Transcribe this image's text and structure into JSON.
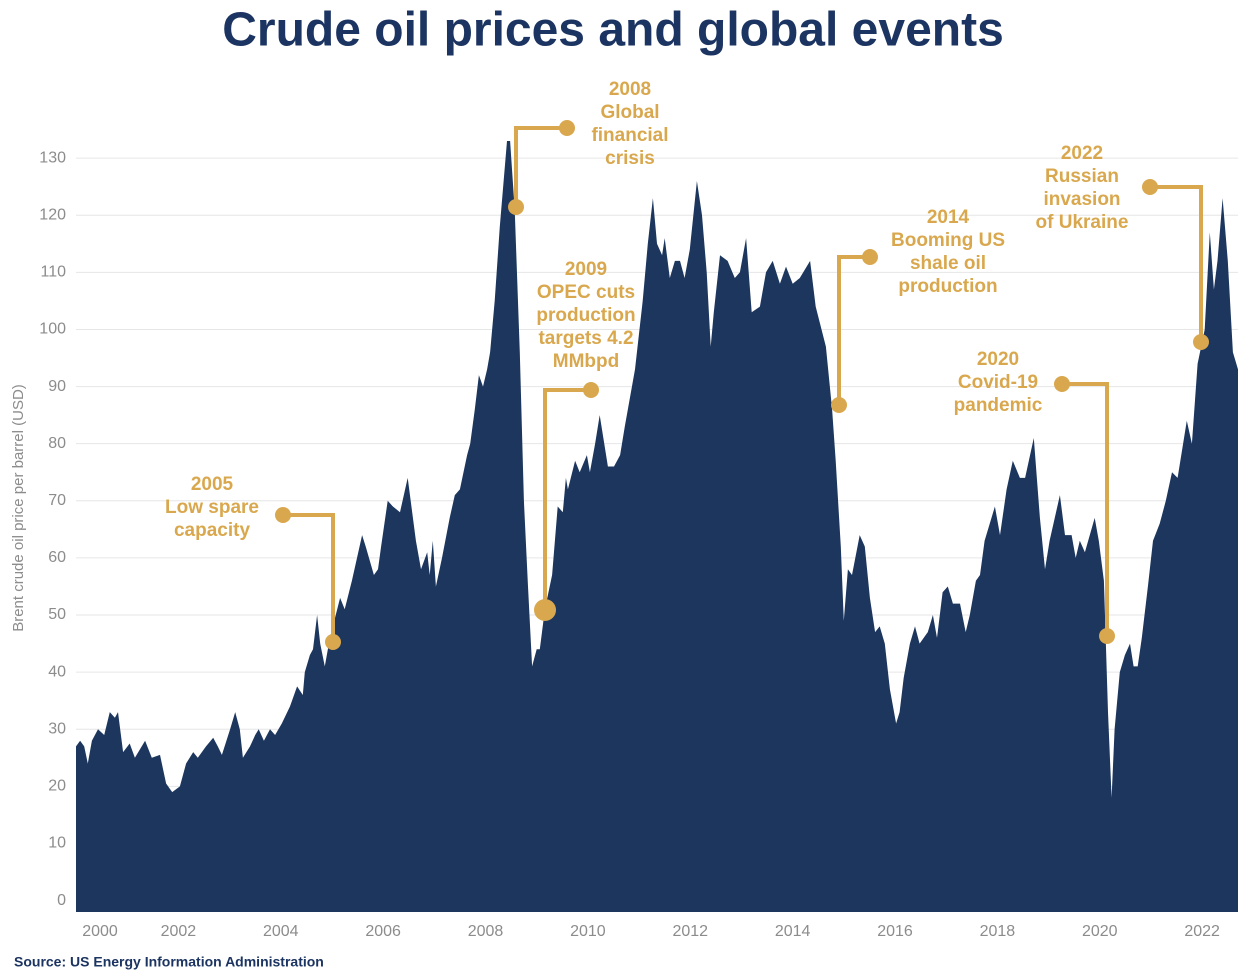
{
  "chart_data": {
    "type": "area",
    "title": "Crude oil prices and global events",
    "y_label": "Brent crude oil price per barrel (USD)",
    "source": "Source: US Energy Information Administration",
    "color": "#1c365e",
    "annotation_color": "#d9a84e",
    "grid": true,
    "xlim": [
      2000,
      2022.7
    ],
    "xticks": [
      2000,
      2002,
      2004,
      2006,
      2008,
      2010,
      2012,
      2014,
      2016,
      2018,
      2020,
      2022
    ],
    "ylim": [
      -2,
      140
    ],
    "yticks": [
      0,
      10,
      20,
      30,
      40,
      50,
      60,
      70,
      80,
      90,
      100,
      110,
      120,
      130
    ],
    "x": [
      2000.0,
      2000.08,
      2000.16,
      2000.23,
      2000.31,
      2000.43,
      2000.55,
      2000.66,
      2000.76,
      2000.82,
      2000.92,
      2001.05,
      2001.15,
      2001.35,
      2001.48,
      2001.64,
      2001.76,
      2001.88,
      2002.03,
      2002.15,
      2002.29,
      2002.38,
      2002.54,
      2002.68,
      2002.77,
      2002.85,
      2003.01,
      2003.11,
      2003.2,
      2003.26,
      2003.4,
      2003.5,
      2003.57,
      2003.67,
      2003.79,
      2003.89,
      2004.02,
      2004.18,
      2004.32,
      2004.43,
      2004.47,
      2004.57,
      2004.63,
      2004.71,
      2004.77,
      2004.86,
      2004.96,
      2005.16,
      2005.25,
      2005.39,
      2005.59,
      2005.66,
      2005.82,
      2005.9,
      2005.96,
      2006.09,
      2006.19,
      2006.33,
      2006.48,
      2006.64,
      2006.74,
      2006.86,
      2006.91,
      2006.97,
      2007.03,
      2007.15,
      2007.3,
      2007.4,
      2007.5,
      2007.64,
      2007.7,
      2007.79,
      2007.87,
      2007.95,
      2008.03,
      2008.09,
      2008.18,
      2008.28,
      2008.42,
      2008.48,
      2008.57,
      2008.67,
      2008.75,
      2008.83,
      2008.91,
      2009.0,
      2009.06,
      2009.16,
      2009.3,
      2009.41,
      2009.51,
      2009.57,
      2009.61,
      2009.75,
      2009.84,
      2009.98,
      2010.04,
      2010.14,
      2010.23,
      2010.39,
      2010.51,
      2010.63,
      2010.72,
      2010.92,
      2011.07,
      2011.17,
      2011.27,
      2011.35,
      2011.45,
      2011.5,
      2011.6,
      2011.7,
      2011.8,
      2011.89,
      2011.99,
      2012.13,
      2012.23,
      2012.32,
      2012.4,
      2012.46,
      2012.58,
      2012.73,
      2012.87,
      2012.97,
      2013.09,
      2013.2,
      2013.36,
      2013.48,
      2013.61,
      2013.75,
      2013.87,
      2014.0,
      2014.14,
      2014.34,
      2014.45,
      2014.65,
      2014.77,
      2014.84,
      2014.94,
      2015.0,
      2015.08,
      2015.16,
      2015.31,
      2015.41,
      2015.51,
      2015.61,
      2015.7,
      2015.8,
      2015.9,
      2016.02,
      2016.09,
      2016.17,
      2016.29,
      2016.39,
      2016.48,
      2016.64,
      2016.74,
      2016.82,
      2016.93,
      2017.03,
      2017.13,
      2017.27,
      2017.38,
      2017.46,
      2017.58,
      2017.66,
      2017.75,
      2017.95,
      2018.05,
      2018.18,
      2018.3,
      2018.44,
      2018.54,
      2018.71,
      2018.83,
      2018.93,
      2019.02,
      2019.22,
      2019.32,
      2019.45,
      2019.53,
      2019.61,
      2019.71,
      2019.9,
      2019.98,
      2020.08,
      2020.16,
      2020.23,
      2020.29,
      2020.39,
      2020.49,
      2020.59,
      2020.66,
      2020.74,
      2020.82,
      2020.94,
      2021.04,
      2021.17,
      2021.29,
      2021.41,
      2021.52,
      2021.7,
      2021.8,
      2021.91,
      2022.05,
      2022.15,
      2022.23,
      2022.3,
      2022.4,
      2022.5,
      2022.6,
      2022.7
    ],
    "values": [
      27,
      28,
      27,
      24,
      28,
      30,
      29,
      33,
      32,
      33,
      26,
      27.5,
      25,
      28,
      25,
      25.5,
      20.5,
      19,
      20,
      24,
      26,
      25,
      27,
      28.5,
      27,
      25.5,
      30,
      33,
      30,
      25,
      27,
      29,
      30,
      28,
      30,
      29,
      31,
      34,
      37.5,
      36,
      40,
      43,
      44,
      50,
      45,
      41,
      46,
      53,
      51,
      56,
      64,
      62,
      57,
      58,
      62,
      70,
      69,
      68,
      74,
      63,
      58,
      61,
      57,
      63,
      55,
      60,
      67,
      71,
      72,
      78,
      80,
      86,
      92,
      90,
      93,
      96,
      105,
      118,
      133,
      133,
      121,
      96,
      70,
      55,
      41,
      44,
      44,
      51,
      57,
      69,
      68,
      74,
      72,
      77,
      75,
      78,
      75,
      80,
      85,
      76,
      76,
      78,
      83,
      93,
      105,
      115,
      123,
      115,
      113,
      116,
      109,
      112,
      112,
      109,
      114,
      126,
      120,
      110,
      97,
      103,
      113,
      112,
      109,
      110,
      116,
      103,
      104,
      110,
      112,
      108,
      111,
      108,
      109,
      112,
      104,
      97,
      86,
      77,
      62,
      49,
      58,
      57,
      64,
      62,
      53,
      47,
      48,
      45,
      37,
      31,
      33,
      39,
      45,
      48,
      45,
      47,
      50,
      46,
      54,
      55,
      52,
      52,
      47,
      50,
      56,
      57,
      63,
      69,
      64,
      72,
      77,
      74,
      74,
      81,
      67,
      58,
      63,
      71,
      64,
      64,
      60,
      63,
      61,
      67,
      63,
      56,
      33,
      18,
      30,
      40,
      43,
      45,
      41,
      41,
      46,
      55,
      63,
      66,
      70,
      75,
      74,
      84,
      80,
      94,
      100,
      117,
      107,
      112,
      123,
      112,
      96,
      93
    ],
    "annotations": [
      [
        "2005",
        "Low spare",
        "capacity"
      ],
      [
        "2008",
        "Global",
        "financial",
        "crisis"
      ],
      [
        "2009",
        "OPEC cuts",
        "production",
        "targets 4.2",
        "MMbpd"
      ],
      [
        "2014",
        "Booming US",
        "shale oil",
        "production"
      ],
      [
        "2020",
        "Covid-19",
        "pandemic"
      ],
      [
        "2022",
        "Russian",
        "invasion",
        "of Ukraine"
      ]
    ]
  }
}
